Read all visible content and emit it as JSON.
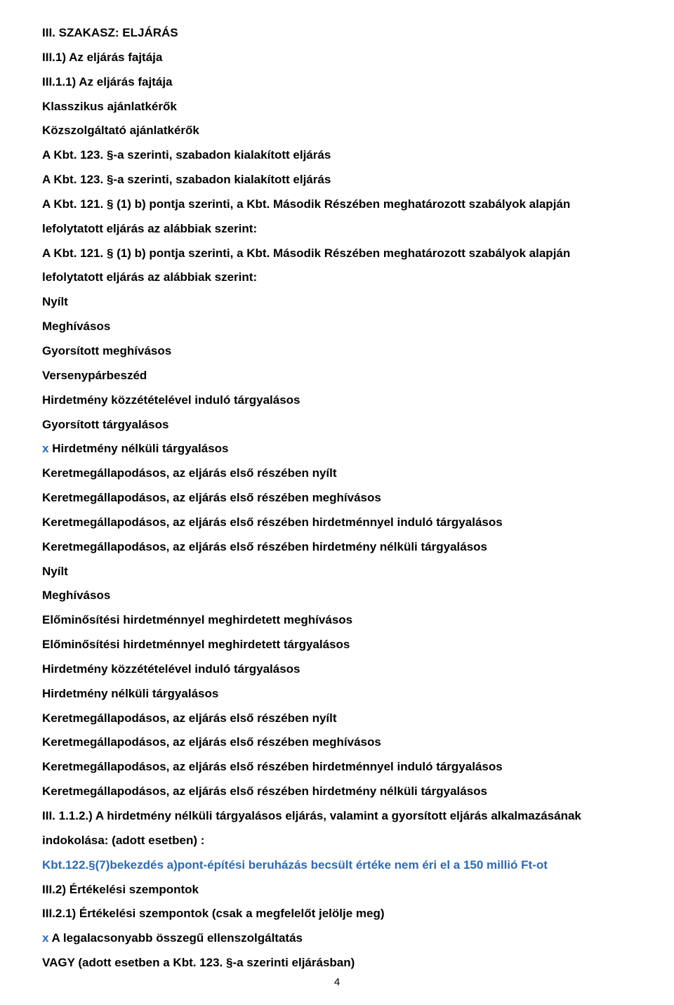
{
  "lines": [
    {
      "text": "III. SZAKASZ: ELJÁRÁS",
      "markedPrefix": ""
    },
    {
      "text": "III.1) Az eljárás fajtája",
      "markedPrefix": ""
    },
    {
      "text": "III.1.1) Az eljárás fajtája",
      "markedPrefix": ""
    },
    {
      "text": "Klasszikus ajánlatkérők",
      "markedPrefix": ""
    },
    {
      "text": "Közszolgáltató ajánlatkérők",
      "markedPrefix": ""
    },
    {
      "text": "A Kbt. 123. §-a szerinti, szabadon kialakított eljárás",
      "markedPrefix": ""
    },
    {
      "text": "A Kbt. 123. §-a szerinti, szabadon kialakított eljárás",
      "markedPrefix": ""
    },
    {
      "text": "A Kbt. 121. § (1) b) pontja szerinti, a Kbt. Második Részében meghatározott szabályok alapján lefolytatott eljárás az alábbiak szerint:",
      "markedPrefix": ""
    },
    {
      "text": "A Kbt. 121. § (1) b) pontja szerinti, a Kbt. Második Részében meghatározott szabályok alapján lefolytatott eljárás az alábbiak szerint:",
      "markedPrefix": ""
    },
    {
      "text": "Nyílt",
      "markedPrefix": ""
    },
    {
      "text": "Meghívásos",
      "markedPrefix": ""
    },
    {
      "text": "Gyorsított meghívásos",
      "markedPrefix": ""
    },
    {
      "text": "Versenypárbeszéd",
      "markedPrefix": ""
    },
    {
      "text": "Hirdetmény közzétételével induló tárgyalásos",
      "markedPrefix": ""
    },
    {
      "text": "Gyorsított tárgyalásos",
      "markedPrefix": ""
    },
    {
      "text": " Hirdetmény nélküli tárgyalásos",
      "markedPrefix": "x"
    },
    {
      "text": "Keretmegállapodásos, az eljárás első részében nyílt",
      "markedPrefix": ""
    },
    {
      "text": "Keretmegállapodásos, az eljárás első részében meghívásos",
      "markedPrefix": ""
    },
    {
      "text": "Keretmegállapodásos, az eljárás első részében hirdetménnyel induló tárgyalásos",
      "markedPrefix": ""
    },
    {
      "text": "Keretmegállapodásos, az eljárás első részében hirdetmény nélküli tárgyalásos",
      "markedPrefix": ""
    },
    {
      "text": "Nyílt",
      "markedPrefix": ""
    },
    {
      "text": "Meghívásos",
      "markedPrefix": ""
    },
    {
      "text": "Előminősítési hirdetménnyel meghirdetett meghívásos",
      "markedPrefix": ""
    },
    {
      "text": "Előminősítési hirdetménnyel meghirdetett tárgyalásos",
      "markedPrefix": ""
    },
    {
      "text": "Hirdetmény közzétételével induló tárgyalásos",
      "markedPrefix": ""
    },
    {
      "text": "Hirdetmény nélküli tárgyalásos",
      "markedPrefix": ""
    },
    {
      "text": "Keretmegállapodásos, az eljárás első részében nyílt",
      "markedPrefix": ""
    },
    {
      "text": "Keretmegállapodásos, az eljárás első részében meghívásos",
      "markedPrefix": ""
    },
    {
      "text": "Keretmegállapodásos, az eljárás első részében hirdetménnyel induló tárgyalásos",
      "markedPrefix": ""
    },
    {
      "text": "Keretmegállapodásos, az eljárás első részében hirdetmény nélküli tárgyalásos",
      "markedPrefix": ""
    },
    {
      "text": "III. 1.1.2.) A hirdetmény nélküli tárgyalásos eljárás, valamint a gyorsított eljárás alkalmazásának indokolása: (adott esetben) :",
      "markedPrefix": ""
    },
    {
      "text": "",
      "markedPrefix": "Kbt.122.§(7)bekezdés a)pont-építési beruházás becsült értéke nem éri el a 150 millió Ft-ot"
    },
    {
      "text": "III.2) Értékelési szempontok",
      "markedPrefix": ""
    },
    {
      "text": "III.2.1) Értékelési szempontok (csak a megfelelőt jelölje meg)",
      "markedPrefix": ""
    },
    {
      "text": " A legalacsonyabb összegű ellenszolgáltatás",
      "markedPrefix": "x"
    },
    {
      "text": "VAGY (adott esetben a Kbt. 123. §-a szerinti eljárásban)",
      "markedPrefix": ""
    }
  ],
  "pageNumber": "4",
  "colors": {
    "text": "#000000",
    "marked": "#2b6ab5",
    "background": "#ffffff"
  },
  "typography": {
    "fontFamily": "Arial, Helvetica, sans-serif",
    "fontSize": 17,
    "lineHeight": 2.05,
    "fontWeight": "bold"
  }
}
